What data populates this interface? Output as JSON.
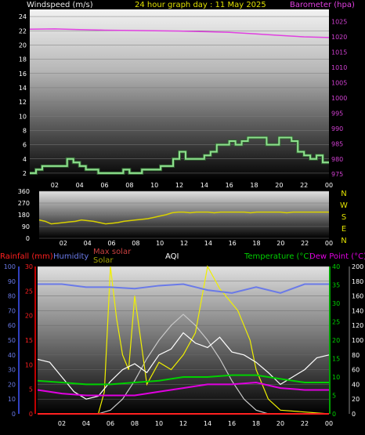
{
  "header": {
    "left_label": "Windspeed (m/s)",
    "title": "24 hour graph day : 11 May 2025",
    "right_label": "Barometer (hpa)"
  },
  "colors": {
    "wind": "#8ee08e",
    "barometer": "#e040e0",
    "title": "#e0e000",
    "direction": "#d8d000",
    "temperature": "#00d000",
    "dewpoint": "#e000e0",
    "humidity": "#6a7ae8",
    "rainfall": "#ff2020",
    "maxsolar": "#c8c8c8",
    "solar": "#f0f000",
    "aqi": "#ffffff"
  },
  "chart_data": [
    {
      "type": "line",
      "name": "wind-barometer",
      "x_ticks": [
        "02",
        "04",
        "06",
        "08",
        "10",
        "12",
        "14",
        "16",
        "18",
        "20",
        "22",
        "00"
      ],
      "y_left_ticks": [
        2,
        4,
        6,
        8,
        10,
        12,
        14,
        16,
        18,
        20,
        22,
        24
      ],
      "y_left_range": [
        1,
        25
      ],
      "y_right_ticks": [
        975,
        980,
        985,
        990,
        995,
        1000,
        1005,
        1010,
        1015,
        1020,
        1025
      ],
      "y_right_range": [
        973,
        1029
      ],
      "series": [
        {
          "name": "Windspeed (m/s)",
          "step": true,
          "x": [
            0,
            1,
            2,
            3,
            4,
            5,
            6,
            7,
            8,
            9,
            10,
            11,
            12,
            13,
            14,
            15,
            16,
            17,
            18,
            19,
            20,
            21,
            22,
            23,
            24,
            25,
            26,
            27,
            28,
            29,
            30,
            31,
            32,
            33,
            34,
            35,
            36,
            37,
            38,
            39,
            40,
            41,
            42,
            43,
            44,
            45,
            46,
            47,
            48
          ],
          "values": [
            2,
            2.5,
            3,
            3,
            3,
            3,
            4,
            3.5,
            3,
            2.5,
            2.5,
            2,
            2,
            2,
            2,
            2.5,
            2,
            2,
            2.5,
            2.5,
            2.5,
            3,
            3,
            4,
            5,
            4,
            4,
            4,
            4.5,
            5,
            6,
            6,
            6.5,
            6,
            6.5,
            7,
            7,
            7,
            6,
            6,
            7,
            7,
            6.5,
            5,
            4.5,
            4,
            4.5,
            3.5,
            3.5
          ]
        },
        {
          "name": "Barometer (hpa)",
          "x": [
            0,
            4,
            8,
            12,
            16,
            20,
            24,
            28,
            32,
            36,
            40,
            44,
            48
          ],
          "values": [
            1022.5,
            1022.6,
            1022.4,
            1022.2,
            1022.1,
            1022.0,
            1021.9,
            1021.7,
            1021.5,
            1021.0,
            1020.5,
            1020.0,
            1019.8
          ]
        }
      ]
    },
    {
      "type": "line",
      "name": "wind-direction",
      "x_ticks": [
        "02",
        "04",
        "06",
        "08",
        "10",
        "12",
        "14",
        "16",
        "18",
        "20",
        "22",
        "00"
      ],
      "y_ticks": [
        360,
        270,
        180,
        90,
        0
      ],
      "y_range": [
        0,
        360
      ],
      "compass": [
        "N",
        "W",
        "S",
        "E",
        "N"
      ],
      "series": [
        {
          "name": "Direction",
          "x": [
            0,
            1,
            2,
            3,
            4,
            5,
            6,
            7,
            8,
            9,
            10,
            11,
            12,
            13,
            14,
            15,
            16,
            17,
            18,
            19,
            20,
            21,
            22,
            23,
            24,
            25,
            26,
            27,
            28,
            29,
            30,
            31,
            32,
            33,
            34,
            35,
            36,
            37,
            38,
            39,
            40,
            41,
            42,
            43,
            44,
            45,
            46,
            47,
            48
          ],
          "values": [
            140,
            130,
            110,
            115,
            120,
            125,
            130,
            140,
            135,
            130,
            120,
            110,
            115,
            120,
            130,
            135,
            140,
            145,
            150,
            160,
            170,
            180,
            195,
            200,
            200,
            195,
            200,
            200,
            200,
            195,
            200,
            200,
            200,
            200,
            200,
            195,
            200,
            200,
            200,
            200,
            200,
            195,
            200,
            200,
            200,
            200,
            200,
            200,
            200
          ]
        }
      ]
    },
    {
      "type": "line",
      "name": "weather-multi",
      "labels": {
        "rainfall": "Rainfall (mm)",
        "humidity": "Humidity",
        "maxsolar": "Max solar",
        "solar": "Solar",
        "aqi": "AQI",
        "temperature": "Temperature (°C)",
        "dewpoint": "Dew Point (°C)"
      },
      "x_ticks": [
        "02",
        "04",
        "06",
        "08",
        "10",
        "12",
        "14",
        "16",
        "18",
        "20",
        "22",
        "00"
      ],
      "humidity_ticks": [
        0,
        10,
        20,
        30,
        40,
        50,
        60,
        70,
        80,
        90,
        100
      ],
      "rain_ticks": [
        0,
        5,
        10,
        15,
        20,
        25,
        30
      ],
      "temp_ticks": [
        0,
        5,
        10,
        15,
        20,
        25,
        30,
        35,
        40
      ],
      "solar_ticks": [
        0,
        20,
        40,
        60,
        80,
        100,
        120,
        140,
        160,
        180,
        200
      ],
      "series": [
        {
          "name": "Humidity",
          "x": [
            0,
            4,
            8,
            12,
            16,
            20,
            24,
            28,
            32,
            36,
            40,
            44,
            48
          ],
          "values": [
            88,
            88,
            86,
            86,
            85,
            87,
            88,
            84,
            82,
            86,
            82,
            88,
            88
          ]
        },
        {
          "name": "Temperature (°C)",
          "x": [
            0,
            4,
            8,
            12,
            16,
            20,
            24,
            28,
            32,
            36,
            40,
            44,
            48
          ],
          "values": [
            9,
            8.5,
            8,
            8,
            8.5,
            9,
            10,
            10,
            10.5,
            10.5,
            9.5,
            8.5,
            8.5
          ]
        },
        {
          "name": "Dew Point (°C)",
          "x": [
            0,
            4,
            8,
            12,
            16,
            20,
            24,
            28,
            32,
            36,
            40,
            44,
            48
          ],
          "values": [
            6.5,
            5.5,
            5,
            5,
            5,
            6,
            7,
            8,
            8,
            8.5,
            7,
            6.5,
            6.5
          ]
        },
        {
          "name": "Rainfall (mm)",
          "x": [
            0,
            48
          ],
          "values": [
            0,
            0
          ]
        },
        {
          "name": "Max solar",
          "x": [
            0,
            10,
            12,
            14,
            16,
            18,
            20,
            22,
            24,
            26,
            28,
            30,
            32,
            34,
            36,
            38,
            48
          ],
          "values": [
            0,
            0,
            5,
            20,
            45,
            75,
            100,
            120,
            135,
            120,
            100,
            75,
            45,
            20,
            5,
            0,
            0
          ]
        },
        {
          "name": "Solar",
          "x": [
            0,
            10,
            11,
            12,
            13,
            14,
            15,
            16,
            18,
            20,
            22,
            24,
            26,
            28,
            30,
            31,
            32,
            33,
            34,
            35,
            36,
            37,
            38,
            40,
            48
          ],
          "values": [
            0,
            0,
            30,
            200,
            130,
            80,
            60,
            160,
            40,
            70,
            60,
            80,
            110,
            200,
            170,
            160,
            150,
            140,
            120,
            100,
            60,
            40,
            20,
            5,
            0
          ]
        },
        {
          "name": "AQI",
          "x": [
            0,
            2,
            4,
            6,
            8,
            10,
            12,
            14,
            16,
            18,
            20,
            22,
            24,
            26,
            28,
            30,
            32,
            34,
            36,
            38,
            40,
            42,
            44,
            46,
            48
          ],
          "values": [
            37,
            35,
            25,
            15,
            10,
            12,
            22,
            30,
            34,
            28,
            40,
            44,
            55,
            48,
            45,
            52,
            42,
            40,
            35,
            28,
            20,
            25,
            30,
            38,
            40
          ]
        }
      ]
    }
  ]
}
